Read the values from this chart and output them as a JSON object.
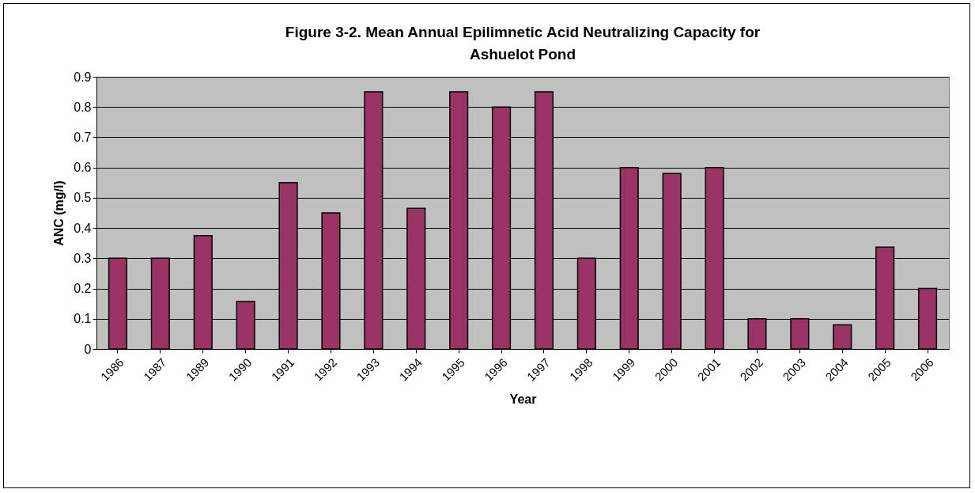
{
  "chart_data": {
    "type": "bar",
    "title": "Figure 3-2.  Mean Annual Epilimnetic Acid Neutralizing Capacity for Ashuelot Pond",
    "xlabel": "Year",
    "ylabel": "ANC (mg/l)",
    "categories": [
      "1986",
      "1987",
      "1989",
      "1990",
      "1991",
      "1992",
      "1993",
      "1994",
      "1995",
      "1996",
      "1997",
      "1998",
      "1999",
      "2000",
      "2001",
      "2002",
      "2003",
      "2004",
      "2005",
      "2006"
    ],
    "values": [
      0.3,
      0.3,
      0.375,
      0.157,
      0.55,
      0.45,
      0.85,
      0.465,
      0.85,
      0.8,
      0.85,
      0.3,
      0.6,
      0.58,
      0.6,
      0.1,
      0.1,
      0.08,
      0.337,
      0.2
    ],
    "color": "#993366",
    "ylim": [
      0,
      0.9
    ],
    "yticks": [
      0,
      0.1,
      0.2,
      0.3,
      0.4,
      0.5,
      0.6,
      0.7,
      0.8,
      0.9
    ],
    "grid": "y",
    "legend": false
  }
}
